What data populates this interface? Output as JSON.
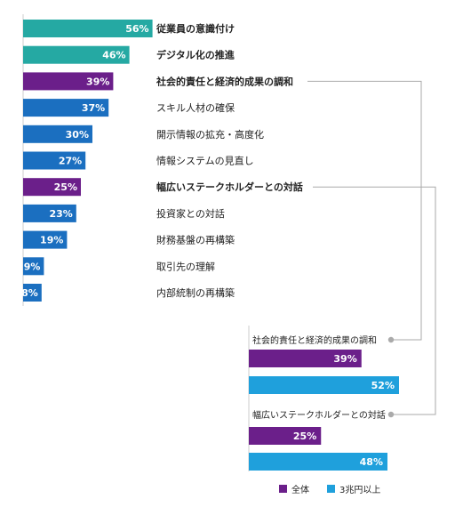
{
  "chart_data": [
    {
      "type": "bar",
      "orientation": "horizontal",
      "categories": [
        "従業員の意識付け",
        "デジタル化の推進",
        "社会的責任と経済的成果の調和",
        "スキル人材の確保",
        "開示情報の拡充・高度化",
        "情報システムの見直し",
        "幅広いステークホルダーとの対話",
        "投資家との対話",
        "財務基盤の再構築",
        "取引先の理解",
        "内部統制の再構築"
      ],
      "values": [
        56,
        46,
        39,
        37,
        30,
        27,
        25,
        23,
        19,
        9,
        8
      ],
      "value_labels": [
        "56%",
        "46%",
        "39%",
        "37%",
        "30%",
        "27%",
        "25%",
        "23%",
        "19%",
        "9%",
        "8%"
      ],
      "bar_colors": [
        "#25a9a3",
        "#25a9a3",
        "#6b1f8a",
        "#1b6fc0",
        "#1b6fc0",
        "#1b6fc0",
        "#6b1f8a",
        "#1b6fc0",
        "#1b6fc0",
        "#1b6fc0",
        "#1b6fc0"
      ],
      "bold_categories": [
        0,
        1,
        2,
        6
      ],
      "xlim": [
        0,
        100
      ]
    },
    {
      "type": "bar",
      "orientation": "horizontal",
      "groups": [
        {
          "title": "社会的責任と経済的成果の調和",
          "values": [
            39,
            52
          ],
          "value_labels": [
            "39%",
            "52%"
          ]
        },
        {
          "title": "幅広いステークホルダーとの対話",
          "values": [
            25,
            48
          ],
          "value_labels": [
            "25%",
            "48%"
          ]
        }
      ],
      "series": [
        {
          "name": "全体",
          "color": "#6b1f8a"
        },
        {
          "name": "3兆円以上",
          "color": "#1fa0dc"
        }
      ],
      "legend_position": "bottom",
      "xlim": [
        0,
        100
      ]
    }
  ],
  "colors": {
    "axis": "#cccccc",
    "connector": "#aaaaaa",
    "label_text": "#222222"
  }
}
